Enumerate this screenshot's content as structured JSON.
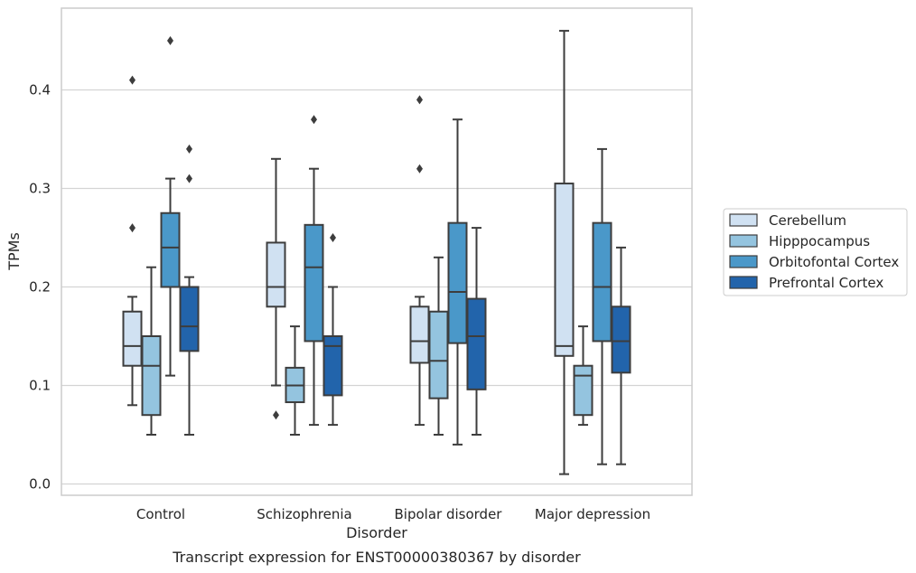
{
  "chart_data": {
    "type": "boxplot",
    "caption": "Transcript expression for ENST00000380367 by disorder",
    "xlabel": "Disorder",
    "ylabel": "TPMs",
    "ylim": [
      -0.012,
      0.483
    ],
    "yticks": [
      0.0,
      0.1,
      0.2,
      0.3,
      0.4
    ],
    "ytick_labels": [
      "0.0",
      "0.1",
      "0.2",
      "0.3",
      "0.4"
    ],
    "grid": "horizontal",
    "legend_position": "outside-right",
    "categories": [
      "Control",
      "Schizophrenia",
      "Bipolar disorder",
      "Major depression"
    ],
    "series": [
      {
        "name": "Cerebellum",
        "color": "#d0e1f2",
        "boxes": [
          {
            "whislo": 0.08,
            "q1": 0.12,
            "med": 0.14,
            "q3": 0.175,
            "whishi": 0.19,
            "fliers": [
              0.26,
              0.41
            ]
          },
          {
            "whislo": 0.1,
            "q1": 0.18,
            "med": 0.2,
            "q3": 0.245,
            "whishi": 0.33,
            "fliers": [
              0.07
            ]
          },
          {
            "whislo": 0.06,
            "q1": 0.123,
            "med": 0.145,
            "q3": 0.18,
            "whishi": 0.19,
            "fliers": [
              0.32,
              0.39
            ]
          },
          {
            "whislo": 0.01,
            "q1": 0.13,
            "med": 0.14,
            "q3": 0.305,
            "whishi": 0.46,
            "fliers": []
          }
        ]
      },
      {
        "name": "Hipppocampus",
        "color": "#94c4df",
        "boxes": [
          {
            "whislo": 0.05,
            "q1": 0.07,
            "med": 0.12,
            "q3": 0.15,
            "whishi": 0.22,
            "fliers": []
          },
          {
            "whislo": 0.05,
            "q1": 0.083,
            "med": 0.1,
            "q3": 0.118,
            "whishi": 0.16,
            "fliers": []
          },
          {
            "whislo": 0.05,
            "q1": 0.087,
            "med": 0.125,
            "q3": 0.175,
            "whishi": 0.23,
            "fliers": []
          },
          {
            "whislo": 0.06,
            "q1": 0.07,
            "med": 0.11,
            "q3": 0.12,
            "whishi": 0.16,
            "fliers": []
          }
        ]
      },
      {
        "name": "Orbitofontal Cortex",
        "color": "#4a98c9",
        "boxes": [
          {
            "whislo": 0.11,
            "q1": 0.2,
            "med": 0.24,
            "q3": 0.275,
            "whishi": 0.31,
            "fliers": [
              0.45
            ]
          },
          {
            "whislo": 0.06,
            "q1": 0.145,
            "med": 0.22,
            "q3": 0.263,
            "whishi": 0.32,
            "fliers": [
              0.37
            ]
          },
          {
            "whislo": 0.04,
            "q1": 0.143,
            "med": 0.195,
            "q3": 0.265,
            "whishi": 0.37,
            "fliers": []
          },
          {
            "whislo": 0.02,
            "q1": 0.145,
            "med": 0.2,
            "q3": 0.265,
            "whishi": 0.34,
            "fliers": []
          }
        ]
      },
      {
        "name": "Prefrontal Cortex",
        "color": "#2264ab",
        "boxes": [
          {
            "whislo": 0.05,
            "q1": 0.135,
            "med": 0.16,
            "q3": 0.2,
            "whishi": 0.21,
            "fliers": [
              0.31,
              0.34
            ]
          },
          {
            "whislo": 0.06,
            "q1": 0.09,
            "med": 0.14,
            "q3": 0.15,
            "whishi": 0.2,
            "fliers": [
              0.25
            ]
          },
          {
            "whislo": 0.05,
            "q1": 0.096,
            "med": 0.15,
            "q3": 0.188,
            "whishi": 0.26,
            "fliers": []
          },
          {
            "whislo": 0.02,
            "q1": 0.113,
            "med": 0.145,
            "q3": 0.18,
            "whishi": 0.24,
            "fliers": []
          }
        ]
      }
    ]
  }
}
